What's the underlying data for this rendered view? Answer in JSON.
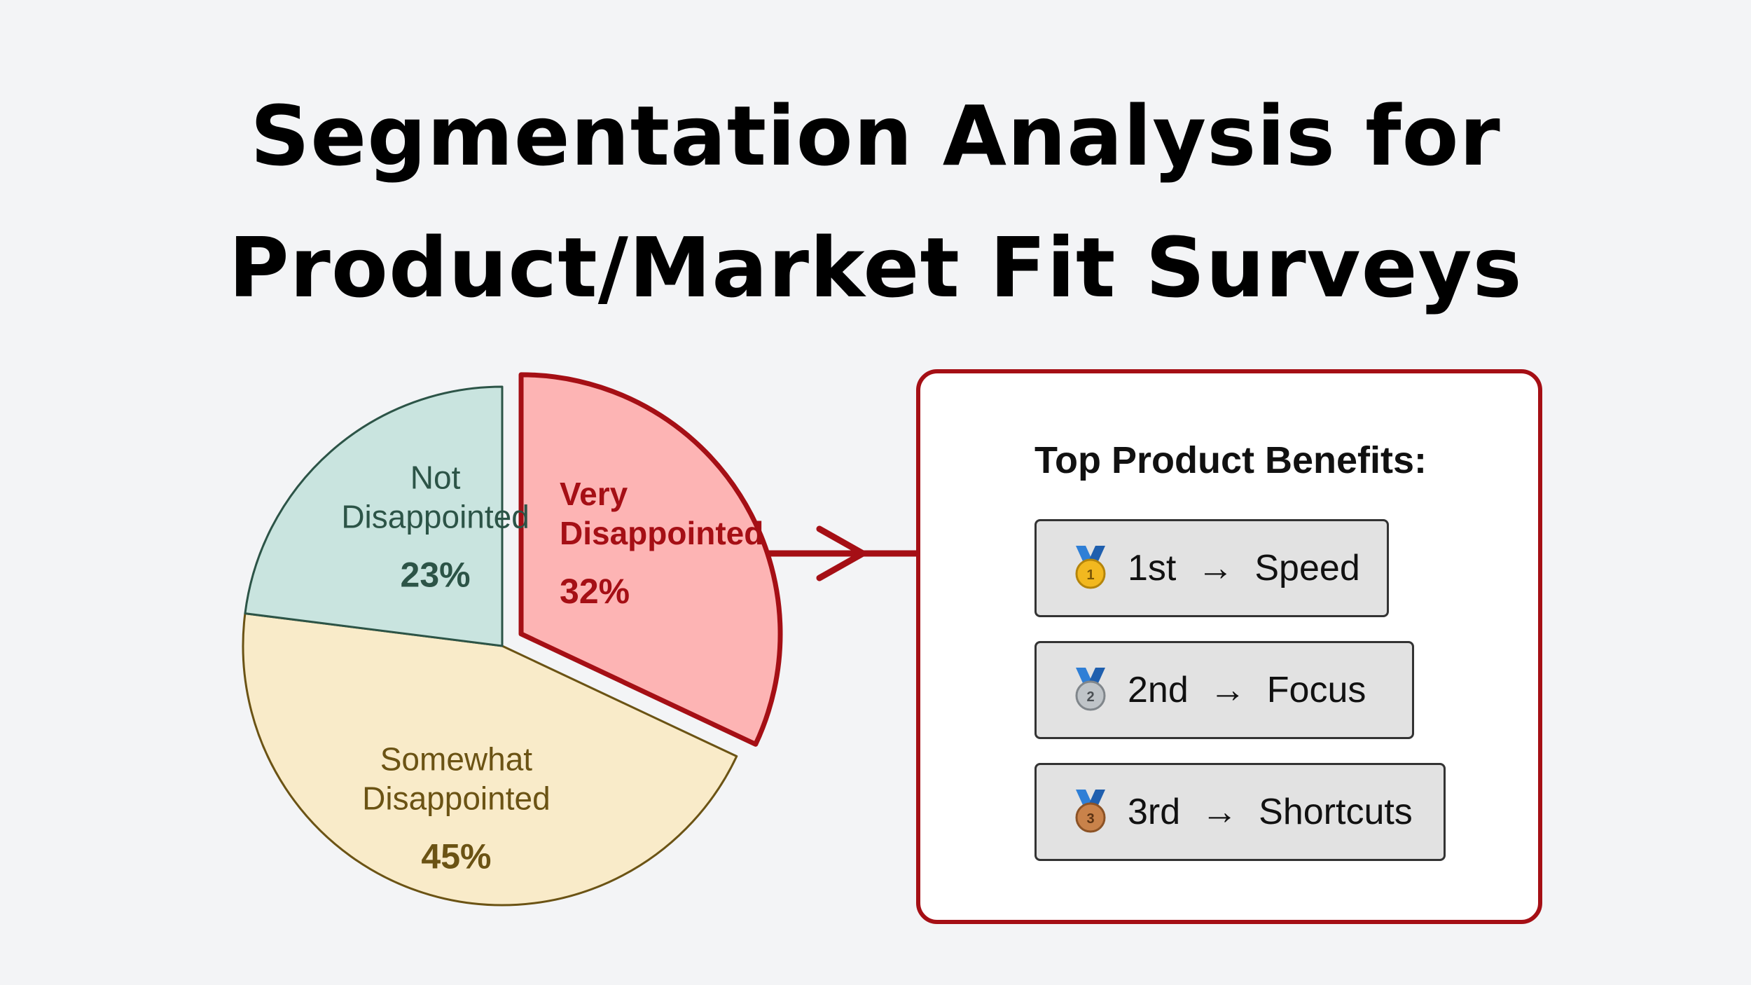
{
  "title": {
    "line1": "Segmentation Analysis for",
    "line2": "Product/Market Fit Surveys"
  },
  "chart_data": {
    "type": "pie",
    "highlighted_slice": "Very Disappointed",
    "slices": [
      {
        "label_lines": [
          "Very",
          "Disappointed"
        ],
        "value": 32,
        "value_label": "32%",
        "fill": "#fdb4b4",
        "stroke": "#a50f15",
        "text_color": "#a50f15",
        "exploded": true
      },
      {
        "label_lines": [
          "Somewhat",
          "Disappointed"
        ],
        "value": 45,
        "value_label": "45%",
        "fill": "#f9ebc9",
        "stroke": "#6b5314",
        "text_color": "#6b5314",
        "exploded": false
      },
      {
        "label_lines": [
          "Not",
          "Disappointed"
        ],
        "value": 23,
        "value_label": "23%",
        "fill": "#c9e4df",
        "stroke": "#2c5447",
        "text_color": "#2c5447",
        "exploded": false
      }
    ]
  },
  "benefits": {
    "heading": "Top Product Benefits:",
    "items": [
      {
        "medal_icon": "gold-medal-icon",
        "medal_number": "1",
        "rank": "1st",
        "arrow": "→",
        "benefit": "Speed",
        "medal_color": "#f2b81f"
      },
      {
        "medal_icon": "silver-medal-icon",
        "medal_number": "2",
        "rank": "2nd",
        "arrow": "→",
        "benefit": "Focus",
        "medal_color": "#bfc4c8"
      },
      {
        "medal_icon": "bronze-medal-icon",
        "medal_number": "3",
        "rank": "3rd",
        "arrow": "→",
        "benefit": "Shortcuts",
        "medal_color": "#c9824a"
      }
    ]
  },
  "colors": {
    "accent": "#a50f15",
    "background": "#f3f4f6"
  }
}
